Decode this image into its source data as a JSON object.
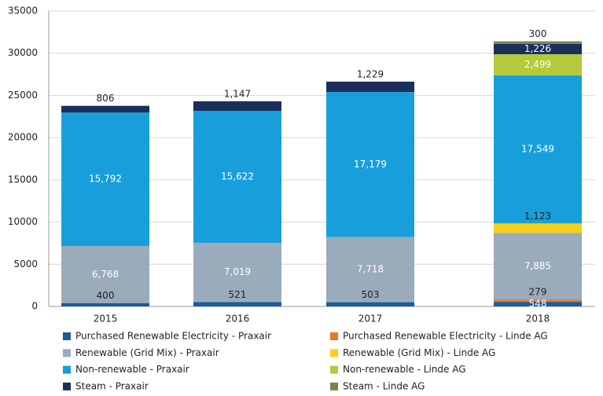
{
  "chart_data": {
    "type": "stacked_bar",
    "categories": [
      "2015",
      "2016",
      "2017",
      "2018"
    ],
    "series": [
      {
        "name": "Purchased Renewable Electricity - Praxair",
        "color": "#1c5a9e",
        "values": [
          400,
          521,
          503,
          548
        ],
        "value_labels": [
          "400",
          "521",
          "503",
          "548"
        ]
      },
      {
        "name": "Purchased Renewable Electricity - Linde AG",
        "color": "#e07b2a",
        "values": [
          null,
          null,
          null,
          279
        ],
        "value_labels": [
          null,
          null,
          null,
          "279"
        ]
      },
      {
        "name": "Renewable (Grid Mix) - Praxair",
        "color": "#9aabbb",
        "values": [
          6768,
          7019,
          7718,
          7885
        ],
        "value_labels": [
          "6,768",
          "7,019",
          "7,718",
          "7,885"
        ]
      },
      {
        "name": "Renewable (Grid Mix) - Linde AG",
        "color": "#f7d117",
        "values": [
          null,
          null,
          null,
          1123
        ],
        "value_labels": [
          null,
          null,
          null,
          "1,123"
        ]
      },
      {
        "name": "Non-renewable - Praxair",
        "color": "#189fdb",
        "values": [
          15792,
          15622,
          17179,
          17549
        ],
        "value_labels": [
          "15,792",
          "15,622",
          "17,179",
          "17,549"
        ]
      },
      {
        "name": "Non-renewable - Linde AG",
        "color": "#b6c93a",
        "values": [
          null,
          null,
          null,
          2499
        ],
        "value_labels": [
          null,
          null,
          null,
          "2,499"
        ]
      },
      {
        "name": "Steam - Praxair",
        "color": "#1b2f5c",
        "values": [
          806,
          1147,
          1229,
          1226
        ],
        "value_labels": [
          "806",
          "1,147",
          "1,229",
          "1,226"
        ]
      },
      {
        "name": "Steam - Linde AG",
        "color": "#7a8450",
        "values": [
          null,
          null,
          null,
          300
        ],
        "value_labels": [
          null,
          null,
          null,
          "300"
        ]
      }
    ],
    "ylim": [
      0,
      35000
    ],
    "yticks": [
      0,
      5000,
      10000,
      15000,
      20000,
      25000,
      30000,
      35000
    ],
    "grid": true
  }
}
